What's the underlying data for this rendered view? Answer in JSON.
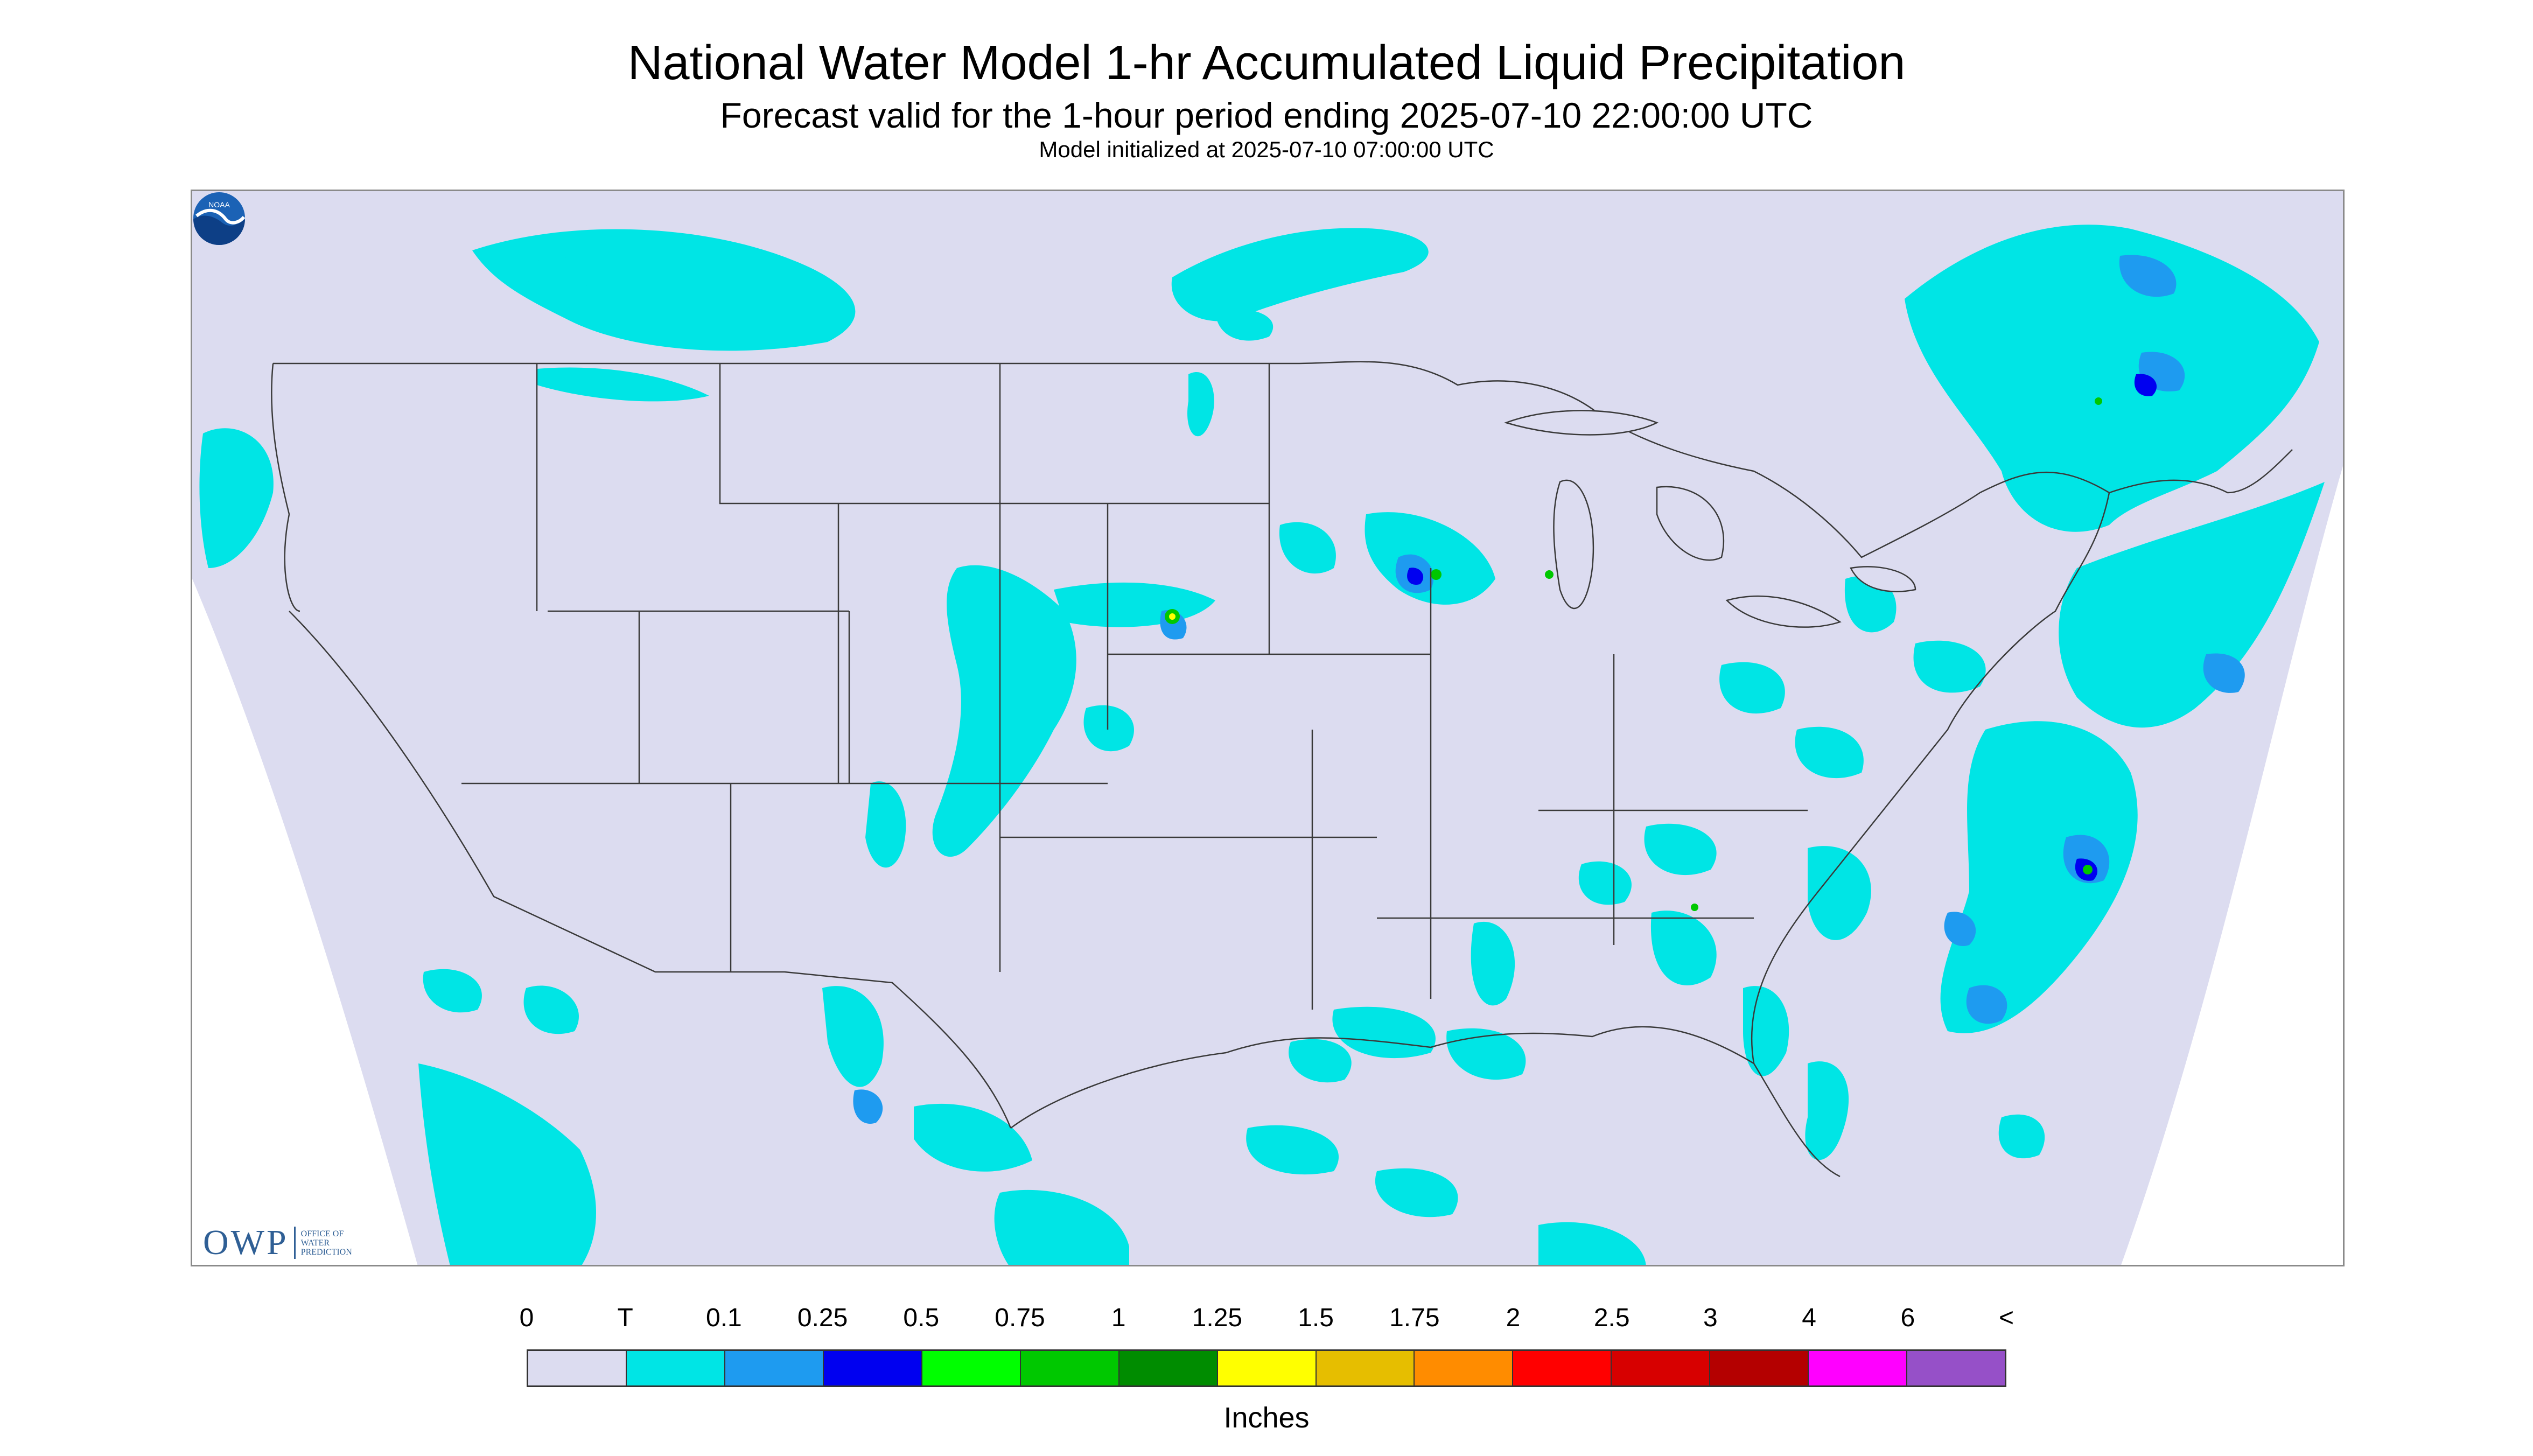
{
  "title": "National Water Model 1-hr Accumulated Liquid Precipitation",
  "subtitle": "Forecast valid for the 1-hour period ending 2025-07-10 22:00:00 UTC",
  "initialized": "Model initialized at 2025-07-10 07:00:00 UTC",
  "logos": {
    "owp_big": "OWP",
    "owp_small": [
      "OFFICE OF",
      "WATER",
      "PREDICTION"
    ],
    "noaa_text": "NOAA"
  },
  "colors": {
    "background_field": "#dcdcf0",
    "outside_domain": "#ffffff",
    "border_lines": "#3a3a3a",
    "trace": "#00e5e5"
  },
  "legend": {
    "units": "Inches",
    "labels": [
      "0",
      "T",
      "0.1",
      "0.25",
      "0.5",
      "0.75",
      "1",
      "1.25",
      "1.5",
      "1.75",
      "2",
      "2.5",
      "3",
      "4",
      "6",
      "<"
    ],
    "colors": [
      "#dcdcf0",
      "#00e5e5",
      "#1e9bf0",
      "#0000f0",
      "#00ff00",
      "#00c800",
      "#008c00",
      "#ffff00",
      "#e6be00",
      "#ff8c00",
      "#ff0000",
      "#d70000",
      "#b40000",
      "#ff00ff",
      "#9650c8"
    ]
  }
}
